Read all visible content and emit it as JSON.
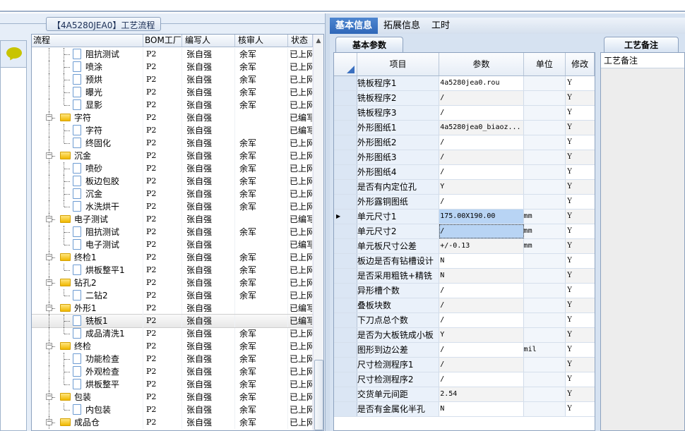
{
  "left": {
    "group_title": "【4A5280JEA0】工艺流程",
    "columns": [
      "流程",
      "BOM工厂",
      "编写人",
      "核审人",
      "状态"
    ],
    "rows": [
      {
        "level": 2,
        "type": "doc",
        "name": "阻抗测试",
        "bom": "P2",
        "writer": "张自强",
        "reviewer": "余军",
        "status": "已上网"
      },
      {
        "level": 2,
        "type": "doc",
        "name": "喷涂",
        "bom": "P2",
        "writer": "张自强",
        "reviewer": "余军",
        "status": "已上网"
      },
      {
        "level": 2,
        "type": "doc",
        "name": "预烘",
        "bom": "P2",
        "writer": "张自强",
        "reviewer": "余军",
        "status": "已上网"
      },
      {
        "level": 2,
        "type": "doc",
        "name": "曝光",
        "bom": "P2",
        "writer": "张自强",
        "reviewer": "余军",
        "status": "已上网"
      },
      {
        "level": 2,
        "type": "doc",
        "name": "显影",
        "bom": "P2",
        "writer": "张自强",
        "reviewer": "余军",
        "status": "已上网"
      },
      {
        "level": 1,
        "type": "folder",
        "name": "字符",
        "bom": "P2",
        "writer": "张自强",
        "reviewer": "",
        "status": "已编写"
      },
      {
        "level": 2,
        "type": "doc",
        "name": "字符",
        "bom": "P2",
        "writer": "张自强",
        "reviewer": "",
        "status": "已编写"
      },
      {
        "level": 2,
        "type": "doc",
        "name": "终固化",
        "bom": "P2",
        "writer": "张自强",
        "reviewer": "余军",
        "status": "已上网"
      },
      {
        "level": 1,
        "type": "folder",
        "name": "沉金",
        "bom": "P2",
        "writer": "张自强",
        "reviewer": "余军",
        "status": "已上网"
      },
      {
        "level": 2,
        "type": "doc",
        "name": "喷砂",
        "bom": "P2",
        "writer": "张自强",
        "reviewer": "余军",
        "status": "已上网"
      },
      {
        "level": 2,
        "type": "doc",
        "name": "板边包胶",
        "bom": "P2",
        "writer": "张自强",
        "reviewer": "余军",
        "status": "已上网"
      },
      {
        "level": 2,
        "type": "doc",
        "name": "沉金",
        "bom": "P2",
        "writer": "张自强",
        "reviewer": "余军",
        "status": "已上网"
      },
      {
        "level": 2,
        "type": "doc",
        "name": "水洗烘干",
        "bom": "P2",
        "writer": "张自强",
        "reviewer": "余军",
        "status": "已上网"
      },
      {
        "level": 1,
        "type": "folder",
        "name": "电子测试",
        "bom": "P2",
        "writer": "张自强",
        "reviewer": "",
        "status": "已编写"
      },
      {
        "level": 2,
        "type": "doc",
        "name": "阻抗测试",
        "bom": "P2",
        "writer": "张自强",
        "reviewer": "余军",
        "status": "已上网"
      },
      {
        "level": 2,
        "type": "doc",
        "name": "电子测试",
        "bom": "P2",
        "writer": "张自强",
        "reviewer": "",
        "status": "已编写"
      },
      {
        "level": 1,
        "type": "folder",
        "name": "终检1",
        "bom": "P2",
        "writer": "张自强",
        "reviewer": "余军",
        "status": "已上网"
      },
      {
        "level": 2,
        "type": "doc",
        "name": "烘板整平1",
        "bom": "P2",
        "writer": "张自强",
        "reviewer": "余军",
        "status": "已上网"
      },
      {
        "level": 1,
        "type": "folder",
        "name": "钻孔2",
        "bom": "P2",
        "writer": "张自强",
        "reviewer": "余军",
        "status": "已上网"
      },
      {
        "level": 2,
        "type": "doc",
        "name": "二钻2",
        "bom": "P2",
        "writer": "张自强",
        "reviewer": "余军",
        "status": "已上网"
      },
      {
        "level": 1,
        "type": "folder",
        "name": "外形1",
        "bom": "P2",
        "writer": "张自强",
        "reviewer": "",
        "status": "已编写"
      },
      {
        "level": 2,
        "type": "doc",
        "name": "铣板1",
        "bom": "P2",
        "writer": "张自强",
        "reviewer": "",
        "status": "已编写",
        "selected": true
      },
      {
        "level": 2,
        "type": "doc",
        "name": "成品清洗1",
        "bom": "P2",
        "writer": "张自强",
        "reviewer": "余军",
        "status": "已上网"
      },
      {
        "level": 1,
        "type": "folder",
        "name": "终检",
        "bom": "P2",
        "writer": "张自强",
        "reviewer": "余军",
        "status": "已上网"
      },
      {
        "level": 2,
        "type": "doc",
        "name": "功能检查",
        "bom": "P2",
        "writer": "张自强",
        "reviewer": "余军",
        "status": "已上网"
      },
      {
        "level": 2,
        "type": "doc",
        "name": "外观检查",
        "bom": "P2",
        "writer": "张自强",
        "reviewer": "余军",
        "status": "已上网"
      },
      {
        "level": 2,
        "type": "doc",
        "name": "烘板整平",
        "bom": "P2",
        "writer": "张自强",
        "reviewer": "余军",
        "status": "已上网"
      },
      {
        "level": 1,
        "type": "folder",
        "name": "包装",
        "bom": "P2",
        "writer": "张自强",
        "reviewer": "余军",
        "status": "已上网"
      },
      {
        "level": 2,
        "type": "doc",
        "name": "内包装",
        "bom": "P2",
        "writer": "张自强",
        "reviewer": "余军",
        "status": "已上网"
      },
      {
        "level": 1,
        "type": "folder",
        "name": "成品仓",
        "bom": "P2",
        "writer": "张自强",
        "reviewer": "余军",
        "status": "已上网"
      }
    ]
  },
  "right": {
    "tabs": [
      "基本信息",
      "拓展信息",
      "工时"
    ],
    "active_tab": 0,
    "subtab": "基本参数",
    "notes_tab": "工艺备注",
    "notes_header": "工艺备注",
    "columns": [
      "项目",
      "参数",
      "单位",
      "修改"
    ],
    "current_row": 9,
    "rows": [
      [
        "铣板程序1",
        "4a5280jea0.rou",
        "",
        "Y"
      ],
      [
        "铣板程序2",
        "/",
        "",
        "Y"
      ],
      [
        "铣板程序3",
        "/",
        "",
        "Y"
      ],
      [
        "外形图纸1",
        "4a5280jea0_biaoz...",
        "",
        "Y"
      ],
      [
        "外形图纸2",
        "/",
        "",
        "Y"
      ],
      [
        "外形图纸3",
        "/",
        "",
        "Y"
      ],
      [
        "外形图纸4",
        "/",
        "",
        "Y"
      ],
      [
        "是否有内定位孔",
        "Y",
        "",
        "Y"
      ],
      [
        "外形露铜图纸",
        "/",
        "",
        "Y"
      ],
      [
        "单元尺寸1",
        "175.00X190.00",
        "mm",
        "Y"
      ],
      [
        "单元尺寸2",
        "/",
        "mm",
        "Y"
      ],
      [
        "单元板尺寸公差",
        "+/-0.13",
        "mm",
        "Y"
      ],
      [
        "板边是否有钻槽设计",
        "N",
        "",
        "Y"
      ],
      [
        "是否采用粗铣+精铣",
        "N",
        "",
        "Y"
      ],
      [
        "异形槽个数",
        "/",
        "",
        "Y"
      ],
      [
        "叠板块数",
        "/",
        "",
        "Y"
      ],
      [
        "下刀点总个数",
        "/",
        "",
        "Y"
      ],
      [
        "是否为大板铣成小板",
        "Y",
        "",
        "Y"
      ],
      [
        "图形到边公差",
        "/",
        "mil",
        "Y"
      ],
      [
        "尺寸检测程序1",
        "/",
        "",
        "Y"
      ],
      [
        "尺寸检测程序2",
        "/",
        "",
        "Y"
      ],
      [
        "交货单元间距",
        "2.54",
        "",
        "Y"
      ],
      [
        "是否有金属化半孔",
        "N",
        "",
        "Y"
      ]
    ]
  }
}
